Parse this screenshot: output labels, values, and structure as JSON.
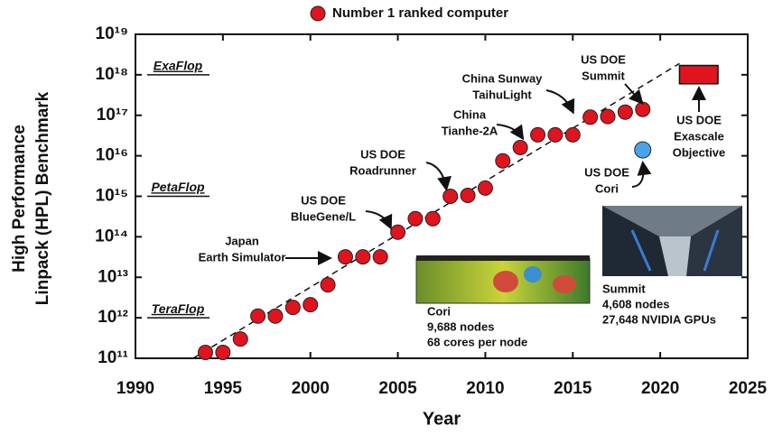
{
  "chart_data": {
    "type": "scatter",
    "log_y": true,
    "xlabel": "Year",
    "ylabel": [
      "High Performance",
      "Linpack (HPL) Benchmark"
    ],
    "xlim": [
      1990,
      2025
    ],
    "xticks": [
      1990,
      1995,
      2000,
      2005,
      2010,
      2015,
      2020,
      2025
    ],
    "ylim": [
      100000000000.0,
      1e+19
    ],
    "yticks": [
      {
        "value": 100000000000.0,
        "label": "10¹¹"
      },
      {
        "value": 1000000000000.0,
        "label": "10¹²"
      },
      {
        "value": 10000000000000.0,
        "label": "10¹³"
      },
      {
        "value": 100000000000000.0,
        "label": "10¹⁴"
      },
      {
        "value": 1000000000000000.0,
        "label": "10¹⁵"
      },
      {
        "value": 1e+16,
        "label": "10¹⁶"
      },
      {
        "value": 1e+17,
        "label": "10¹⁷"
      },
      {
        "value": 1e+18,
        "label": "10¹⁸"
      },
      {
        "value": 1e+19,
        "label": "10¹⁹"
      }
    ],
    "legend": "top",
    "series": [
      {
        "name": "Number 1 ranked computer",
        "color": "#e0141e",
        "x": [
          1994,
          1995,
          1996,
          1997,
          1998,
          1999,
          2000,
          2001,
          2002,
          2003,
          2004,
          2005,
          2006,
          2007,
          2008,
          2009,
          2010,
          2011,
          2012,
          2013,
          2014,
          2015,
          2016,
          2017,
          2018,
          2019
        ],
        "values": [
          140000000000.0,
          140000000000.0,
          300000000000.0,
          1100000000000.0,
          1100000000000.0,
          1800000000000.0,
          2100000000000.0,
          6500000000000.0,
          32000000000000.0,
          32000000000000.0,
          32000000000000.0,
          130000000000000.0,
          280000000000000.0,
          280000000000000.0,
          1000000000000000.0,
          1050000000000000.0,
          1600000000000000.0,
          7500000000000000.0,
          1.6e+16,
          3.3e+16,
          3.3e+16,
          3.3e+16,
          9e+16,
          9.3e+16,
          1.2e+17,
          1.4e+17
        ]
      },
      {
        "color": "#4aa3e8",
        "x": [
          2019
        ],
        "values": [
          1.4e+16
        ]
      }
    ],
    "trend": {
      "x": [
        1993.3,
        2021.1
      ],
      "values": [
        100000000000.0,
        1.9e+18
      ]
    },
    "objective": {
      "x": [
        2021.1,
        2023.3
      ],
      "values": [
        6e+17,
        1.7e+18
      ],
      "color": "#e0141e"
    },
    "reference_lines": [
      {
        "label": "ExaFlop",
        "value": 1e+18
      },
      {
        "label": "PetaFlop",
        "value": 1000000000000000.0
      },
      {
        "label": "TeraFlop",
        "value": 1000000000000.0
      }
    ],
    "annotations": [
      {
        "text": [
          "Japan",
          "Earth Simulator"
        ]
      },
      {
        "text": [
          "US DOE",
          "BlueGene/L"
        ]
      },
      {
        "text": [
          "US DOE",
          "Roadrunner"
        ]
      },
      {
        "text": [
          "China",
          "Tianhe-2A"
        ]
      },
      {
        "text": [
          "China Sunway",
          "TaihuLight"
        ]
      },
      {
        "text": [
          "US DOE",
          "Summit"
        ]
      },
      {
        "text": [
          "US DOE",
          "Exascale",
          "Objective"
        ]
      },
      {
        "text": [
          "US DOE",
          "Cori"
        ]
      }
    ],
    "captions": [
      {
        "text": [
          "Cori",
          "9,688 nodes",
          "68 cores per node"
        ]
      },
      {
        "text": [
          "Summit",
          "4,608 nodes",
          "27,648 NVIDIA GPUs"
        ]
      }
    ]
  }
}
